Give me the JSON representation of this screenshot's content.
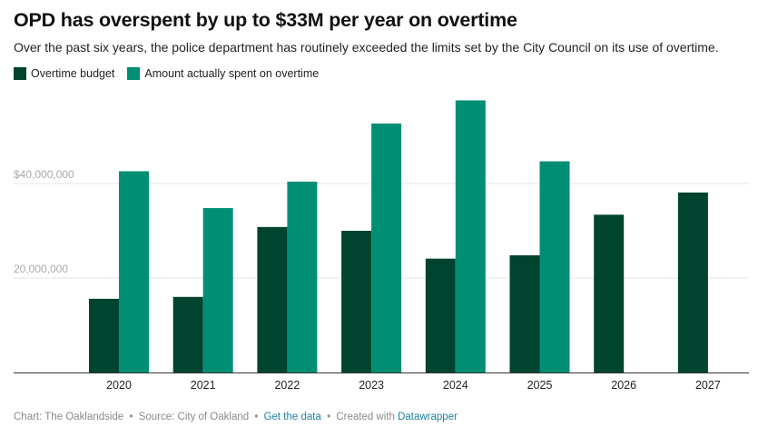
{
  "title": "OPD has overspent by up to $33M per year on overtime",
  "subtitle": "Over the past six years, the police department has routinely exceeded the limits set by the City Council on its use of overtime.",
  "colors": {
    "budget": "#004430",
    "spent": "#008e74",
    "grid": "#e6e6e6",
    "axis": "#333333",
    "ytick": "#aaaaaa",
    "link": "#1d81a2"
  },
  "chart_data": {
    "type": "bar",
    "categories": [
      "2020",
      "2021",
      "2022",
      "2023",
      "2024",
      "2025",
      "2026",
      "2027"
    ],
    "series": [
      {
        "name": "Overtime budget",
        "values": [
          15600000,
          16000000,
          30800000,
          30000000,
          24100000,
          24800000,
          33400000,
          38100000
        ]
      },
      {
        "name": "Amount actually spent on overtime",
        "values": [
          42600000,
          34800000,
          40400000,
          52700000,
          57600000,
          44700000,
          null,
          null
        ]
      }
    ],
    "yticks": [
      {
        "value": 20000000,
        "label": "20,000,000"
      },
      {
        "value": 40000000,
        "label": "$40,000,000"
      }
    ],
    "ylim": [
      0,
      60000000
    ],
    "xlabel": "",
    "ylabel": ""
  },
  "footer": {
    "credit": "Chart: The Oaklandside",
    "source": "Source: City of Oakland",
    "get_data": "Get the data",
    "created_with": "Created with",
    "tool": "Datawrapper",
    "separator": "•"
  }
}
